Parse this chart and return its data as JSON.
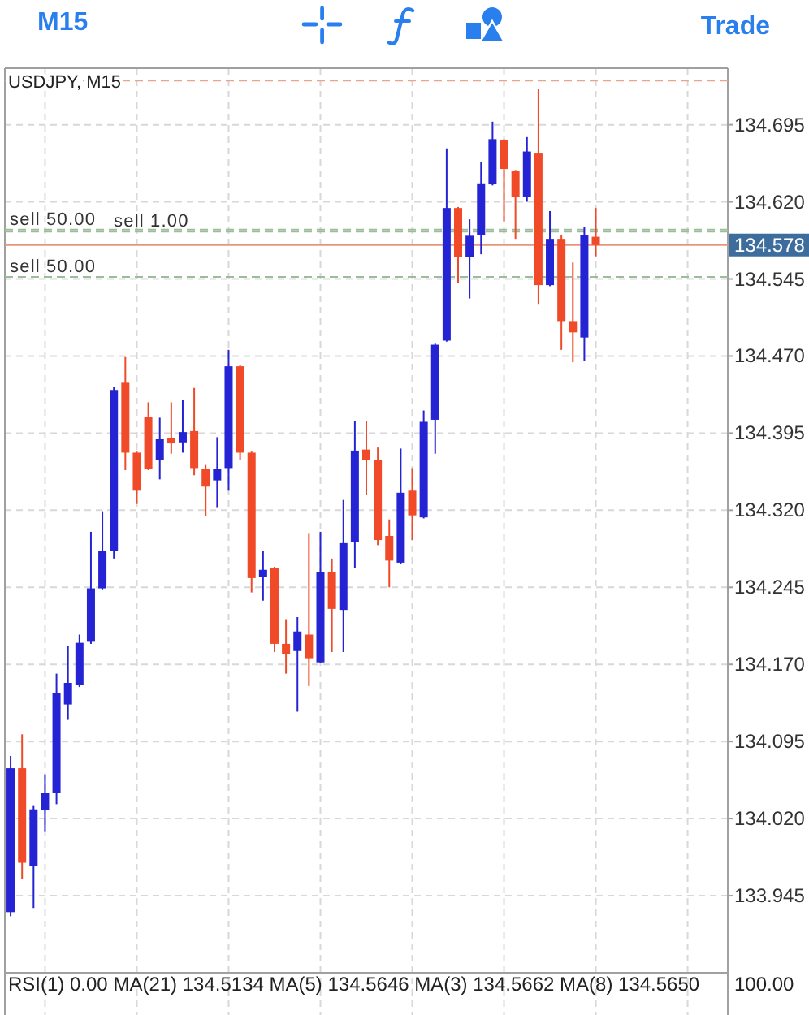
{
  "chart_data": [
    {
      "type": "candlestick",
      "title": "USDJPY, M15",
      "categories": [
        null,
        null,
        null,
        null,
        null,
        null,
        null,
        null,
        null,
        null,
        null,
        null,
        null,
        null,
        null,
        null,
        null,
        null,
        null,
        null,
        null,
        null,
        null,
        null,
        null,
        null,
        null,
        null,
        null,
        null,
        null,
        null,
        null,
        null,
        null,
        null,
        null,
        null,
        null,
        null,
        null,
        null,
        null,
        null,
        null,
        null,
        null,
        null,
        null,
        null,
        null,
        null,
        null,
        null,
        null,
        null,
        null,
        null,
        null,
        null,
        null,
        null,
        null
      ],
      "ohlc": [
        [
          133.929,
          134.081,
          133.925,
          134.069
        ],
        [
          134.069,
          134.102,
          133.961,
          133.977
        ],
        [
          133.974,
          134.033,
          133.933,
          134.029
        ],
        [
          134.028,
          134.063,
          134.007,
          134.045
        ],
        [
          134.045,
          134.161,
          134.034,
          134.142
        ],
        [
          134.131,
          134.188,
          134.116,
          134.152
        ],
        [
          134.15,
          134.199,
          134.148,
          134.191
        ],
        [
          134.192,
          134.299,
          134.19,
          134.244
        ],
        [
          134.244,
          134.319,
          134.243,
          134.28
        ],
        [
          134.28,
          134.44,
          134.273,
          134.437
        ],
        [
          134.444,
          134.469,
          134.359,
          134.376
        ],
        [
          134.376,
          134.377,
          134.326,
          134.339
        ],
        [
          134.411,
          134.425,
          134.359,
          134.36
        ],
        [
          134.369,
          134.41,
          134.35,
          134.389
        ],
        [
          134.39,
          134.425,
          134.375,
          134.385
        ],
        [
          134.386,
          134.427,
          134.376,
          134.396
        ],
        [
          134.397,
          134.439,
          134.354,
          134.361
        ],
        [
          134.36,
          134.364,
          134.314,
          134.343
        ],
        [
          134.349,
          134.391,
          134.323,
          134.36
        ],
        [
          134.361,
          134.476,
          134.339,
          134.46
        ],
        [
          134.46,
          134.461,
          134.369,
          134.376
        ],
        [
          134.376,
          134.377,
          134.24,
          134.254
        ],
        [
          134.255,
          134.28,
          134.232,
          134.262
        ],
        [
          134.264,
          134.265,
          134.182,
          134.19
        ],
        [
          134.19,
          134.214,
          134.161,
          134.18
        ],
        [
          134.183,
          134.216,
          134.124,
          134.202
        ],
        [
          134.199,
          134.297,
          134.149,
          134.176
        ],
        [
          134.172,
          134.299,
          134.171,
          134.26
        ],
        [
          134.26,
          134.273,
          134.182,
          134.224
        ],
        [
          134.223,
          134.33,
          134.182,
          134.288
        ],
        [
          134.289,
          134.407,
          134.264,
          134.378
        ],
        [
          134.379,
          134.407,
          134.335,
          134.369
        ],
        [
          134.369,
          134.381,
          134.286,
          134.291
        ],
        [
          134.295,
          134.311,
          134.245,
          134.271
        ],
        [
          134.269,
          134.38,
          134.268,
          134.337
        ],
        [
          134.339,
          134.361,
          134.291,
          134.315
        ],
        [
          134.313,
          134.417,
          134.312,
          134.406
        ],
        [
          134.408,
          134.482,
          134.375,
          134.481
        ],
        [
          134.485,
          134.672,
          134.484,
          134.614
        ],
        [
          134.614,
          134.615,
          134.541,
          134.566
        ],
        [
          134.566,
          134.603,
          134.526,
          134.587
        ],
        [
          134.588,
          134.659,
          134.569,
          134.638
        ],
        [
          134.637,
          134.698,
          134.636,
          134.681
        ],
        [
          134.68,
          134.681,
          134.601,
          134.652
        ],
        [
          134.65,
          134.651,
          134.584,
          134.625
        ],
        [
          134.625,
          134.683,
          134.62,
          134.669
        ],
        [
          134.667,
          134.73,
          134.52,
          134.539
        ],
        [
          134.539,
          134.611,
          134.538,
          134.584
        ],
        [
          134.584,
          134.588,
          134.476,
          134.504
        ],
        [
          134.504,
          134.561,
          134.464,
          134.493
        ],
        [
          134.488,
          134.596,
          134.465,
          134.588
        ],
        [
          134.586,
          134.614,
          134.567,
          134.578
        ],
        null,
        null,
        null,
        null,
        null,
        null,
        null,
        null,
        null,
        null,
        null
      ],
      "colors": [
        "#2424d4",
        "#f04a28",
        "#2424d4",
        "#2424d4",
        "#2424d4",
        "#2424d4",
        "#2424d4",
        "#2424d4",
        "#2424d4",
        "#2424d4",
        "#f04a28",
        "#f04a28",
        "#f04a28",
        "#2424d4",
        "#f04a28",
        "#2424d4",
        "#f04a28",
        "#f04a28",
        "#2424d4",
        "#2424d4",
        "#f04a28",
        "#f04a28",
        "#2424d4",
        "#f04a28",
        "#f04a28",
        "#2424d4",
        "#f04a28",
        "#2424d4",
        "#f04a28",
        "#2424d4",
        "#2424d4",
        "#f04a28",
        "#f04a28",
        "#f04a28",
        "#2424d4",
        "#f04a28",
        "#2424d4",
        "#2424d4",
        "#2424d4",
        "#f04a28",
        "#2424d4",
        "#2424d4",
        "#2424d4",
        "#f04a28",
        "#f04a28",
        "#2424d4",
        "#f04a28",
        "#2424d4",
        "#f04a28",
        "#f04a28",
        "#2424d4",
        "#f04a28",
        null,
        null,
        null,
        null,
        null,
        null,
        null,
        null,
        null,
        null,
        null
      ],
      "ylim": [
        133.87,
        134.75
      ],
      "yticks": [
        133.945,
        {
          "value": 134.02,
          "label": "134.020"
        },
        134.095,
        {
          "value": 134.17,
          "label": "134.170"
        },
        134.245,
        {
          "value": 134.32,
          "label": "134.320"
        },
        134.395,
        {
          "value": 134.47,
          "label": "134.470"
        },
        134.545,
        {
          "value": 134.62,
          "label": "134.620"
        },
        134.695
      ],
      "grid": true,
      "tick_labels": "y",
      "ref_lines": [
        {
          "axis": "y",
          "value": 134.738,
          "color": "#e8a48c",
          "line_style": "dashed"
        },
        {
          "axis": "y",
          "value": 134.593,
          "label": "sell 50.00",
          "color": "#9cbc9c",
          "line_style": "dashed"
        },
        {
          "axis": "y",
          "value": 134.591,
          "label": "sell 1.00",
          "color": "#9cbc9c",
          "line_style": "dashed"
        },
        {
          "axis": "y",
          "value": 134.547,
          "label": "sell 50.00",
          "color": "#9cbc9c",
          "line_style": "dashed"
        },
        {
          "axis": "y",
          "value": 134.578,
          "label": "134.578",
          "color": "#e8957a",
          "line_style": "solid"
        }
      ],
      "annotations": [
        "M15",
        "Trade"
      ]
    },
    {
      "type": "other",
      "annotations": [
        "RSI(1) 0.00 MA(21) 134.5134 MA(5) 134.5646 MA(3) 134.5662 MA(8) 134.5650",
        "100.00"
      ]
    }
  ]
}
